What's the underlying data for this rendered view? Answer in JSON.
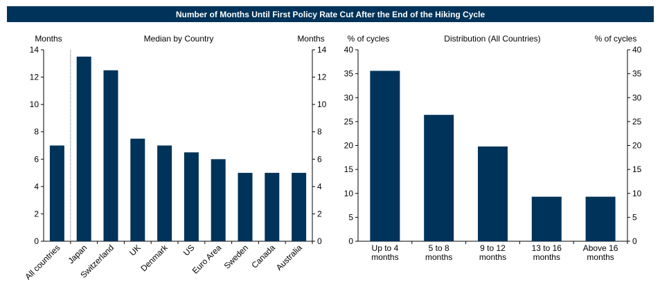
{
  "title": "Number of Months Until First Policy Rate Cut After the End of the Hiking Cycle",
  "bar_color": "#003359",
  "chart_data": [
    {
      "type": "bar",
      "title": "Median by Country",
      "ylabel_left": "Months",
      "ylabel_right": "Months",
      "ylim": [
        0,
        14
      ],
      "yticks": [
        "0",
        "2",
        "4",
        "6",
        "8",
        "10",
        "12",
        "14"
      ],
      "categories": [
        "All countries",
        "Japan",
        "Switzerland",
        "UK",
        "Denmark",
        "US",
        "Euro Area",
        "Sweden",
        "Canada",
        "Australia"
      ],
      "values": [
        7,
        13.5,
        12.5,
        7.5,
        7,
        6.5,
        6,
        5,
        5,
        5
      ],
      "separator_after_index": 0,
      "grid": false
    },
    {
      "type": "bar",
      "title": "Distribution (All Countries)",
      "ylabel_left": "% of cycles",
      "ylabel_right": "% of cycles",
      "ylim": [
        0,
        40
      ],
      "yticks": [
        "0",
        "5",
        "10",
        "15",
        "20",
        "25",
        "30",
        "35",
        "40"
      ],
      "categories": [
        [
          "Up to 4",
          "months"
        ],
        [
          "5 to 8",
          "months"
        ],
        [
          "9 to 12",
          "months"
        ],
        [
          "13 to 16",
          "months"
        ],
        [
          "Above 16",
          "months"
        ]
      ],
      "values": [
        35.6,
        26.4,
        19.8,
        9.3,
        9.3
      ],
      "grid": false
    }
  ]
}
